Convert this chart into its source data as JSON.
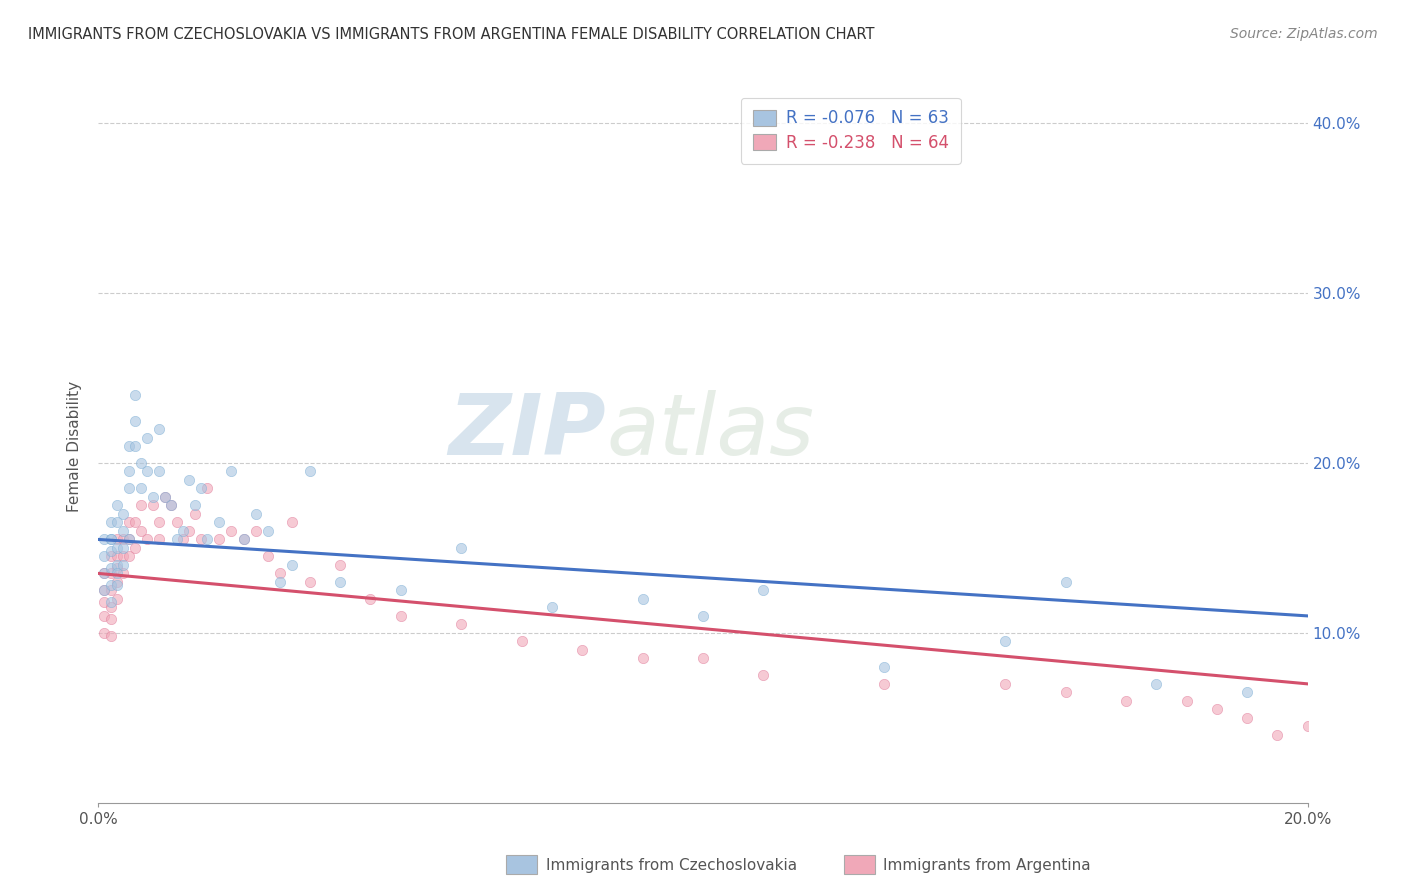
{
  "title": "IMMIGRANTS FROM CZECHOSLOVAKIA VS IMMIGRANTS FROM ARGENTINA FEMALE DISABILITY CORRELATION CHART",
  "source": "Source: ZipAtlas.com",
  "ylabel": "Female Disability",
  "xlim": [
    0.0,
    0.2
  ],
  "ylim": [
    0.0,
    0.42
  ],
  "yticks": [
    0.1,
    0.2,
    0.3,
    0.4
  ],
  "yticklabels_right": [
    "10.0%",
    "20.0%",
    "30.0%",
    "40.0%"
  ],
  "color_czech": "#a8c4e0",
  "color_czech_edge": "#7aadd4",
  "color_argentina": "#f0a8b8",
  "color_argentina_edge": "#e07898",
  "line_color_czech": "#4472c4",
  "line_color_argentina": "#d4506c",
  "background_color": "#ffffff",
  "watermark_zip": "ZIP",
  "watermark_atlas": "atlas",
  "watermark_color": "#ccdde8",
  "grid_color": "#cccccc",
  "scatter_alpha": 0.6,
  "scatter_size": 55,
  "czech_x": [
    0.001,
    0.001,
    0.001,
    0.001,
    0.002,
    0.002,
    0.002,
    0.002,
    0.002,
    0.002,
    0.002,
    0.003,
    0.003,
    0.003,
    0.003,
    0.003,
    0.003,
    0.004,
    0.004,
    0.004,
    0.004,
    0.005,
    0.005,
    0.005,
    0.005,
    0.006,
    0.006,
    0.006,
    0.007,
    0.007,
    0.008,
    0.008,
    0.009,
    0.01,
    0.01,
    0.011,
    0.012,
    0.013,
    0.014,
    0.015,
    0.016,
    0.017,
    0.018,
    0.02,
    0.022,
    0.024,
    0.026,
    0.028,
    0.03,
    0.032,
    0.035,
    0.04,
    0.05,
    0.06,
    0.075,
    0.09,
    0.1,
    0.11,
    0.13,
    0.15,
    0.16,
    0.175,
    0.19
  ],
  "czech_y": [
    0.155,
    0.145,
    0.135,
    0.125,
    0.155,
    0.148,
    0.138,
    0.128,
    0.118,
    0.165,
    0.155,
    0.175,
    0.165,
    0.15,
    0.14,
    0.135,
    0.128,
    0.17,
    0.16,
    0.15,
    0.14,
    0.21,
    0.195,
    0.185,
    0.155,
    0.24,
    0.225,
    0.21,
    0.2,
    0.185,
    0.215,
    0.195,
    0.18,
    0.22,
    0.195,
    0.18,
    0.175,
    0.155,
    0.16,
    0.19,
    0.175,
    0.185,
    0.155,
    0.165,
    0.195,
    0.155,
    0.17,
    0.16,
    0.13,
    0.14,
    0.195,
    0.13,
    0.125,
    0.15,
    0.115,
    0.12,
    0.11,
    0.125,
    0.08,
    0.095,
    0.13,
    0.07,
    0.065
  ],
  "argentina_x": [
    0.001,
    0.001,
    0.001,
    0.001,
    0.001,
    0.002,
    0.002,
    0.002,
    0.002,
    0.002,
    0.002,
    0.003,
    0.003,
    0.003,
    0.003,
    0.003,
    0.004,
    0.004,
    0.004,
    0.005,
    0.005,
    0.005,
    0.006,
    0.006,
    0.007,
    0.007,
    0.008,
    0.009,
    0.01,
    0.01,
    0.011,
    0.012,
    0.013,
    0.014,
    0.015,
    0.016,
    0.017,
    0.018,
    0.02,
    0.022,
    0.024,
    0.026,
    0.028,
    0.03,
    0.032,
    0.035,
    0.04,
    0.045,
    0.05,
    0.06,
    0.07,
    0.08,
    0.09,
    0.1,
    0.11,
    0.13,
    0.15,
    0.16,
    0.17,
    0.18,
    0.185,
    0.19,
    0.195,
    0.2
  ],
  "argentina_y": [
    0.135,
    0.125,
    0.118,
    0.11,
    0.1,
    0.145,
    0.135,
    0.125,
    0.115,
    0.108,
    0.098,
    0.155,
    0.145,
    0.138,
    0.13,
    0.12,
    0.155,
    0.145,
    0.135,
    0.165,
    0.155,
    0.145,
    0.165,
    0.15,
    0.175,
    0.16,
    0.155,
    0.175,
    0.165,
    0.155,
    0.18,
    0.175,
    0.165,
    0.155,
    0.16,
    0.17,
    0.155,
    0.185,
    0.155,
    0.16,
    0.155,
    0.16,
    0.145,
    0.135,
    0.165,
    0.13,
    0.14,
    0.12,
    0.11,
    0.105,
    0.095,
    0.09,
    0.085,
    0.085,
    0.075,
    0.07,
    0.07,
    0.065,
    0.06,
    0.06,
    0.055,
    0.05,
    0.04,
    0.045
  ],
  "czech_line_x0": 0.0,
  "czech_line_x1": 0.2,
  "czech_line_y0": 0.155,
  "czech_line_y1": 0.11,
  "arg_line_x0": 0.0,
  "arg_line_x1": 0.2,
  "arg_line_y0": 0.135,
  "arg_line_y1": 0.07
}
